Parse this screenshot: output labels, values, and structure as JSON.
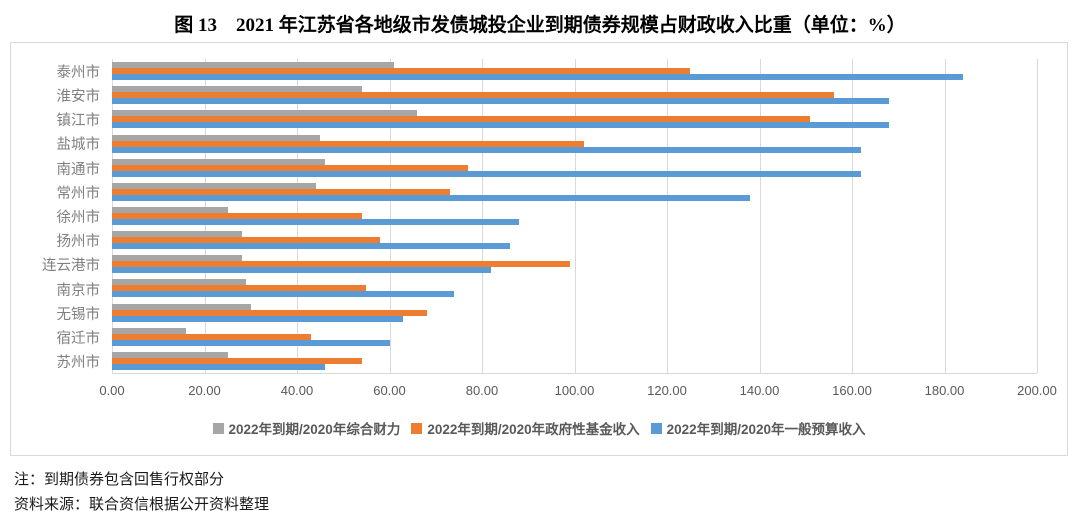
{
  "chart_data": {
    "type": "bar",
    "orientation": "horizontal",
    "title": "图 13　2021 年江苏省各地级市发债城投企业到期债券规模占财政收入比重（单位：%）",
    "categories": [
      "泰州市",
      "淮安市",
      "镇江市",
      "盐城市",
      "南通市",
      "常州市",
      "徐州市",
      "扬州市",
      "连云港市",
      "南京市",
      "无锡市",
      "宿迁市",
      "苏州市"
    ],
    "series": [
      {
        "name": "2022年到期/2020年综合财力",
        "color": "#A6A6A6",
        "values": [
          61,
          54,
          66,
          45,
          46,
          44,
          25,
          28,
          28,
          29,
          30,
          16,
          25
        ]
      },
      {
        "name": "2022年到期/2020年政府性基金收入",
        "color": "#ED7D31",
        "values": [
          125,
          156,
          151,
          102,
          77,
          73,
          54,
          58,
          99,
          55,
          68,
          43,
          54
        ]
      },
      {
        "name": "2022年到期/2020年一般预算收入",
        "color": "#5B9BD5",
        "values": [
          184,
          168,
          168,
          162,
          162,
          138,
          88,
          86,
          82,
          74,
          63,
          60,
          46
        ]
      }
    ],
    "xlim": [
      0,
      200
    ],
    "xticks": [
      "0.00",
      "20.00",
      "40.00",
      "60.00",
      "80.00",
      "100.00",
      "120.00",
      "140.00",
      "160.00",
      "180.00",
      "200.00"
    ],
    "grid": true,
    "legend_position": "bottom"
  },
  "notes": {
    "line1": "注：到期债券包含回售行权部分",
    "line2": "资料来源：联合资信根据公开资料整理"
  }
}
